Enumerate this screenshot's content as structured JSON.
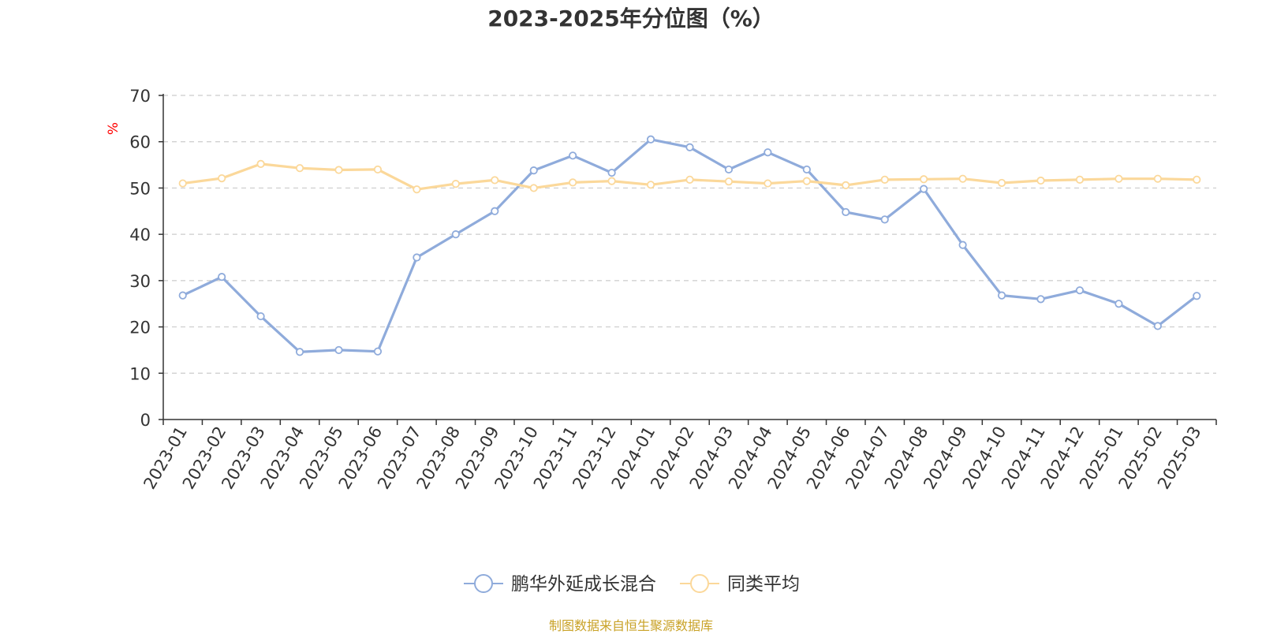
{
  "chart_data": {
    "type": "line",
    "title": "2023-2025年分位图（%）",
    "ylabel": "%",
    "xlabel": "",
    "ylim": [
      0,
      70
    ],
    "yticks": [
      0,
      10,
      20,
      30,
      40,
      50,
      60,
      70
    ],
    "grid": true,
    "legend_position": "bottom",
    "categories": [
      "2023-01",
      "2023-02",
      "2023-03",
      "2023-04",
      "2023-05",
      "2023-06",
      "2023-07",
      "2023-08",
      "2023-09",
      "2023-10",
      "2023-11",
      "2023-12",
      "2024-01",
      "2024-02",
      "2024-03",
      "2024-04",
      "2024-05",
      "2024-06",
      "2024-07",
      "2024-08",
      "2024-09",
      "2024-10",
      "2024-11",
      "2024-12",
      "2025-01",
      "2025-02",
      "2025-03"
    ],
    "series": [
      {
        "name": "鹏华外延成长混合",
        "color": "#8fabdb",
        "values": [
          26.8,
          30.8,
          22.3,
          14.6,
          15.0,
          14.7,
          35.0,
          40.0,
          45.0,
          53.8,
          57.0,
          53.3,
          60.5,
          58.8,
          54.0,
          57.7,
          54.0,
          44.8,
          43.2,
          49.8,
          37.7,
          26.8,
          26.0,
          27.9,
          25.0,
          20.2,
          26.7
        ]
      },
      {
        "name": "同类平均",
        "color": "#fbd89a",
        "values": [
          51.0,
          52.1,
          55.2,
          54.3,
          53.9,
          54.0,
          49.7,
          50.9,
          51.7,
          50.0,
          51.2,
          51.5,
          50.7,
          51.8,
          51.4,
          51.0,
          51.5,
          50.6,
          51.8,
          51.9,
          52.0,
          51.1,
          51.6,
          51.8,
          52.0,
          52.0,
          51.8
        ]
      }
    ]
  },
  "source_note": "制图数据来自恒生聚源数据库",
  "colors": {
    "axis": "#333333",
    "grid": "#cccccc",
    "ylabel": "#ff0000",
    "source": "#c9a227"
  }
}
